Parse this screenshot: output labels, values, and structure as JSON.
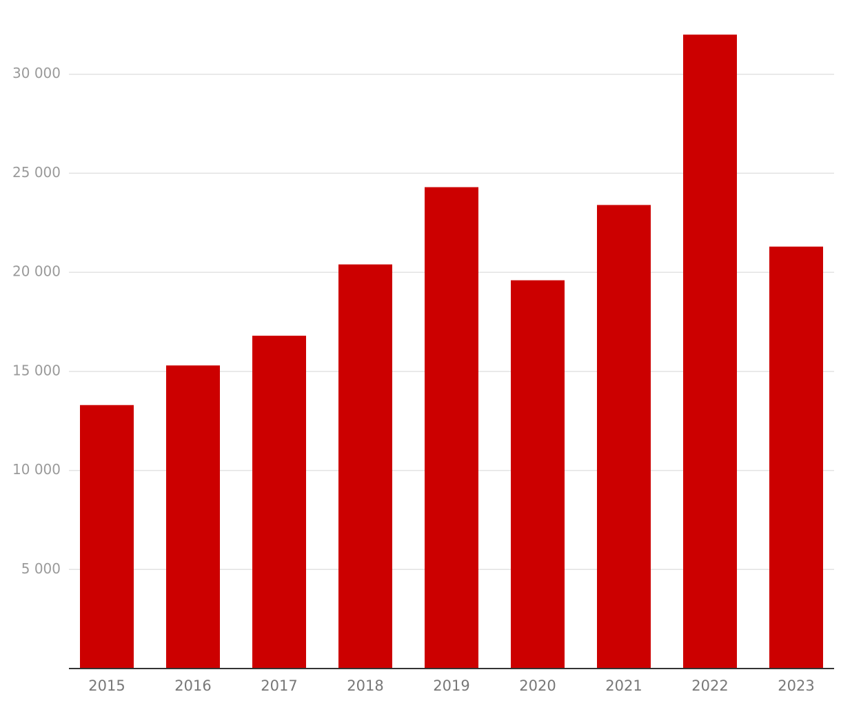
{
  "chart_data": {
    "type": "bar",
    "categories": [
      "2015",
      "2016",
      "2017",
      "2018",
      "2019",
      "2020",
      "2021",
      "2022",
      "2023"
    ],
    "values": [
      13300,
      15300,
      16800,
      20400,
      24300,
      19600,
      23400,
      32000,
      21300
    ],
    "color": "#cc0000",
    "ylim": [
      0,
      33400
    ],
    "yticks": [
      {
        "value": 5000,
        "label": "5 000"
      },
      {
        "value": 10000,
        "label": "10 000"
      },
      {
        "value": 15000,
        "label": "15 000"
      },
      {
        "value": 20000,
        "label": "20 000"
      },
      {
        "value": 25000,
        "label": "25 000"
      },
      {
        "value": 30000,
        "label": "30 000"
      }
    ],
    "grid": true
  }
}
